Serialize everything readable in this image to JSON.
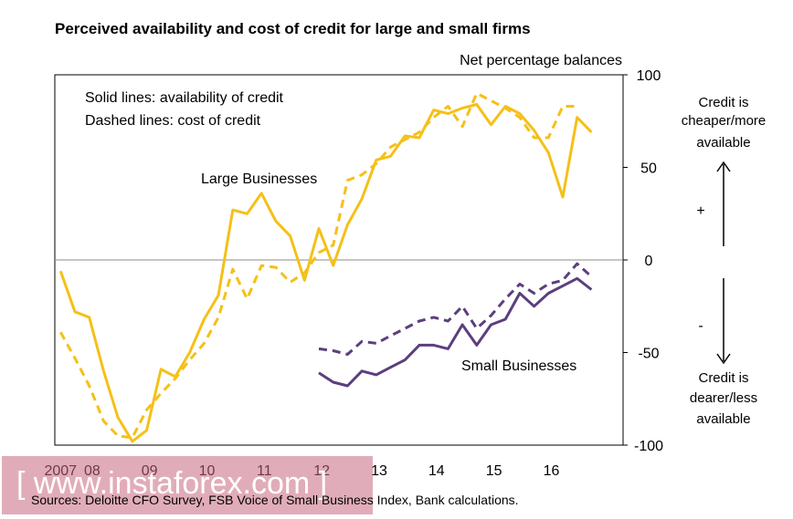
{
  "chart_data": {
    "type": "line",
    "title": "Perceived availability and cost of credit for large and small firms",
    "ylabel": "Net percentage balances",
    "ylim": [
      -100,
      100
    ],
    "yticks": [
      100,
      50,
      0,
      -50,
      -100
    ],
    "xlim": [
      2006.9,
      2016.8
    ],
    "xticks": [
      {
        "label": "2007",
        "x": 2007.0
      },
      {
        "label": "08",
        "x": 2007.55
      },
      {
        "label": "09",
        "x": 2008.55
      },
      {
        "label": "10",
        "x": 2009.55
      },
      {
        "label": "11",
        "x": 2010.55
      },
      {
        "label": "12",
        "x": 2011.55
      },
      {
        "label": "13",
        "x": 2012.55
      },
      {
        "label": "14",
        "x": 2013.55
      },
      {
        "label": "15",
        "x": 2014.55
      },
      {
        "label": "16",
        "x": 2015.55
      }
    ],
    "series": [
      {
        "name": "Large Businesses - availability of credit",
        "color": "#f5c018",
        "dash": false,
        "x": [
          2007.0,
          2007.25,
          2007.5,
          2007.75,
          2008.0,
          2008.25,
          2008.5,
          2008.75,
          2009.0,
          2009.25,
          2009.5,
          2009.75,
          2010.0,
          2010.25,
          2010.5,
          2010.75,
          2011.0,
          2011.25,
          2011.5,
          2011.75,
          2012.0,
          2012.25,
          2012.5,
          2012.75,
          2013.0,
          2013.25,
          2013.5,
          2013.75,
          2014.0,
          2014.25,
          2014.5,
          2014.75,
          2015.0,
          2015.25,
          2015.5,
          2015.75,
          2016.0,
          2016.25,
          2016.5
        ],
        "values": [
          -6,
          -28,
          -31,
          -60,
          -85,
          -98,
          -92,
          -59,
          -63,
          -50,
          -32,
          -19,
          27,
          25,
          36,
          21,
          13,
          -11,
          17,
          -3,
          19,
          33,
          54,
          56,
          67,
          66,
          81,
          79,
          82,
          84,
          73,
          83,
          79,
          70,
          58,
          34,
          77,
          69,
          null
        ]
      },
      {
        "name": "Large Businesses - cost of credit",
        "color": "#f5c018",
        "dash": true,
        "x": [
          2007.0,
          2007.25,
          2007.5,
          2007.75,
          2008.0,
          2008.25,
          2008.5,
          2008.75,
          2009.0,
          2009.25,
          2009.5,
          2009.75,
          2010.0,
          2010.25,
          2010.5,
          2010.75,
          2011.0,
          2011.25,
          2011.5,
          2011.75,
          2012.0,
          2012.25,
          2012.5,
          2012.75,
          2013.0,
          2013.25,
          2013.5,
          2013.75,
          2014.0,
          2014.25,
          2014.5,
          2014.75,
          2015.0,
          2015.25,
          2015.5,
          2015.75,
          2016.0,
          2016.25,
          2016.5
        ],
        "values": [
          -39,
          -53,
          -68,
          -87,
          -95,
          -96,
          -81,
          -72,
          -64,
          -54,
          -45,
          -31,
          -5,
          -21,
          -3,
          -4,
          -12,
          -7,
          4,
          8,
          43,
          46,
          52,
          61,
          65,
          69,
          77,
          83,
          72,
          90,
          86,
          82,
          77,
          66,
          66,
          83,
          83,
          null,
          null
        ]
      },
      {
        "name": "Small Businesses - availability of credit",
        "color": "#5b3f7e",
        "dash": false,
        "x": [
          2011.5,
          2011.75,
          2012.0,
          2012.25,
          2012.5,
          2012.75,
          2013.0,
          2013.25,
          2013.5,
          2013.75,
          2014.0,
          2014.25,
          2014.5,
          2014.75,
          2015.0,
          2015.25,
          2015.5,
          2015.75,
          2016.0,
          2016.25,
          2016.5
        ],
        "values": [
          -61,
          -66,
          -68,
          -60,
          -62,
          -58,
          -54,
          -46,
          -46,
          -48,
          -35,
          -46,
          -35,
          -32,
          -18,
          -25,
          -18,
          -14,
          -10,
          -16,
          null
        ]
      },
      {
        "name": "Small Businesses - cost of credit",
        "color": "#5b3f7e",
        "dash": true,
        "x": [
          2011.5,
          2011.75,
          2012.0,
          2012.25,
          2012.5,
          2012.75,
          2013.0,
          2013.25,
          2013.5,
          2013.75,
          2014.0,
          2014.25,
          2014.5,
          2014.75,
          2015.0,
          2015.25,
          2015.5,
          2015.75,
          2016.0,
          2016.25,
          2016.5
        ],
        "values": [
          -48,
          -49,
          -51,
          -44,
          -45,
          -41,
          -37,
          -33,
          -31,
          -33,
          -25,
          -37,
          -30,
          -21,
          -13,
          -18,
          -13,
          -11,
          -2,
          -9,
          null
        ]
      }
    ],
    "annotations": {
      "legend_solid": "Solid lines:  availability of credit",
      "legend_dashed": "Dashed lines:  cost of credit",
      "large_label": "Large Businesses",
      "small_label": "Small Businesses",
      "right_top": [
        "Credit is",
        "cheaper/more",
        "available"
      ],
      "right_bottom": [
        "Credit is",
        "dearer/less",
        "available"
      ],
      "plus": "+",
      "minus": "-"
    }
  },
  "watermark": "[ www.instaforex.com ]",
  "source": "Sources: Deloitte CFO Survey, FSB Voice of Small Business Index, Bank calculations.",
  "colors": {
    "large": "#f5c018",
    "small": "#5b3f7e",
    "zero_line": "#8c8c8c",
    "watermark_bg": "#c9677f"
  }
}
